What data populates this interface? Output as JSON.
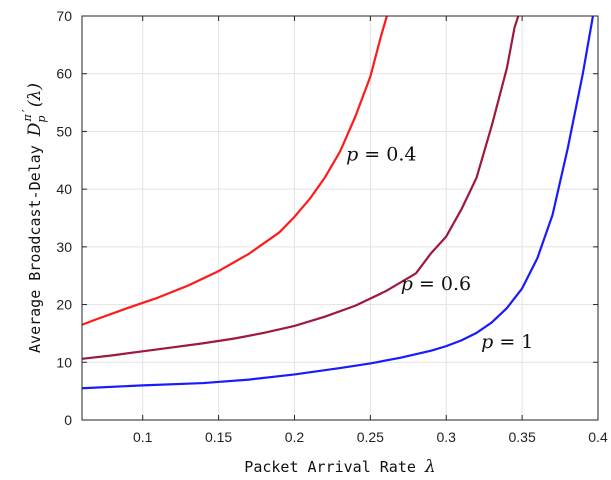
{
  "chart_data": {
    "type": "line",
    "xlabel_text": "Packet Arrival Rate ",
    "xlabel_symbol": "λ",
    "ylabel_text": "Average Broadcast-Delay ",
    "ylabel_symbol": "D",
    "ylabel_sub": "p",
    "ylabel_sup": "π",
    "ylabel_prime": "′",
    "ylabel_arg": "(λ)",
    "xlim": [
      0.06,
      0.4
    ],
    "ylim": [
      0,
      70
    ],
    "x_ticks": [
      0.1,
      0.15,
      0.2,
      0.25,
      0.3,
      0.35,
      0.4
    ],
    "x_tick_labels": [
      "0.1",
      "0.15",
      "0.2",
      "0.25",
      "0.3",
      "0.35",
      "0.4"
    ],
    "y_ticks": [
      0,
      10,
      20,
      30,
      40,
      50,
      60,
      70
    ],
    "y_tick_labels": [
      "0",
      "10",
      "20",
      "30",
      "40",
      "50",
      "60",
      "70"
    ],
    "grid": true,
    "series": [
      {
        "annotation": "p = 0.4",
        "annotation_pos": [
          0.234,
          45
        ],
        "color": "#ff1a1a",
        "x": [
          0.06,
          0.07,
          0.09,
          0.11,
          0.13,
          0.15,
          0.17,
          0.19,
          0.2,
          0.21,
          0.22,
          0.23,
          0.24,
          0.25,
          0.257,
          0.262
        ],
        "y": [
          16.5,
          17.5,
          19.4,
          21.2,
          23.3,
          25.8,
          28.8,
          32.5,
          35.2,
          38.3,
          42.0,
          46.5,
          52.5,
          59.5,
          66.5,
          71
        ]
      },
      {
        "annotation": "p = 0.6",
        "annotation_pos": [
          0.27,
          22.5
        ],
        "color": "#9e1a3c",
        "x": [
          0.06,
          0.08,
          0.1,
          0.12,
          0.14,
          0.16,
          0.18,
          0.2,
          0.22,
          0.24,
          0.26,
          0.28,
          0.29,
          0.3,
          0.31,
          0.32,
          0.33,
          0.34,
          0.345,
          0.35
        ],
        "y": [
          10.6,
          11.2,
          11.9,
          12.6,
          13.3,
          14.1,
          15.1,
          16.3,
          17.9,
          19.8,
          22.3,
          25.4,
          28.9,
          31.8,
          36.5,
          42.0,
          51.0,
          61.0,
          68.0,
          72
        ]
      },
      {
        "annotation": "p = 1",
        "annotation_pos": [
          0.323,
          12.5
        ],
        "color": "#1a1aff",
        "x": [
          0.06,
          0.1,
          0.14,
          0.17,
          0.2,
          0.23,
          0.25,
          0.27,
          0.29,
          0.3,
          0.31,
          0.32,
          0.33,
          0.34,
          0.35,
          0.36,
          0.37,
          0.38,
          0.39,
          0.395,
          0.398
        ],
        "y": [
          5.5,
          6.0,
          6.4,
          7.0,
          7.9,
          9.0,
          9.8,
          10.8,
          12.0,
          12.8,
          13.8,
          15.1,
          16.9,
          19.4,
          22.8,
          28.0,
          35.5,
          47.0,
          60.0,
          67.5,
          72
        ]
      }
    ]
  }
}
